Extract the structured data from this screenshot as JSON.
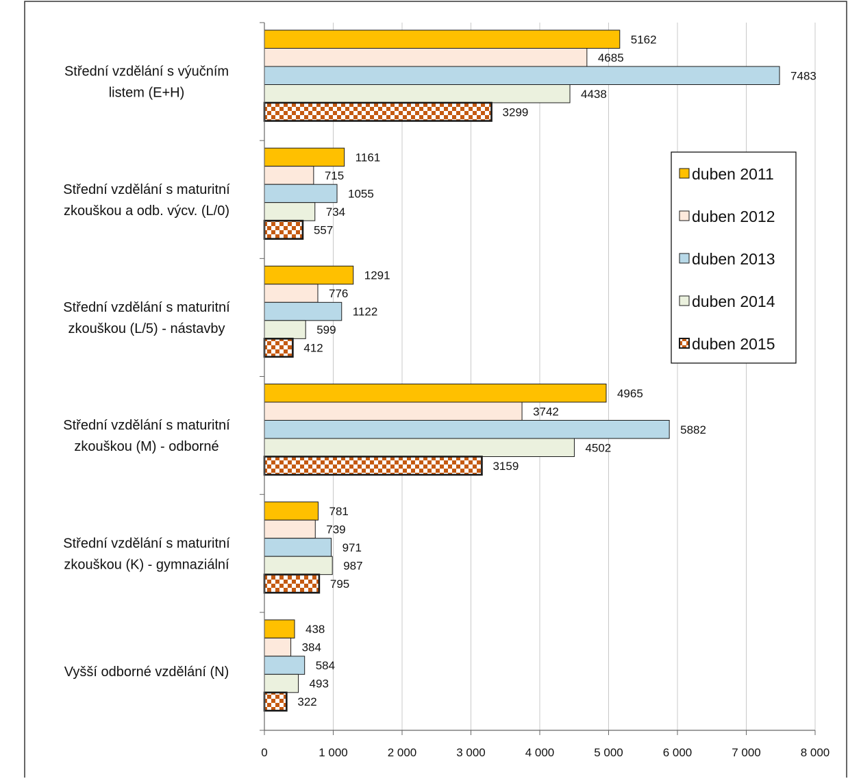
{
  "chart_data": {
    "type": "bar",
    "orientation": "horizontal",
    "title": "",
    "xlabel": "",
    "ylabel": "",
    "xlim": [
      0,
      8000
    ],
    "x_ticks": [
      0,
      1000,
      2000,
      3000,
      4000,
      5000,
      6000,
      7000,
      8000
    ],
    "x_tick_labels": [
      "0",
      "1 000",
      "2 000",
      "3 000",
      "4 000",
      "5 000",
      "6 000",
      "7 000",
      "8 000"
    ],
    "grid": "vertical",
    "legend_position": "right",
    "categories": [
      [
        "Střední vzdělání s výučním",
        "listem (E+H)"
      ],
      [
        "Střední vzdělání s maturitní",
        "zkouškou a odb. výcv. (L/0)"
      ],
      [
        "Střední vzdělání s maturitní",
        "zkouškou (L/5) - nástavby"
      ],
      [
        "Střední vzdělání s maturitní",
        "zkouškou (M) - odborné"
      ],
      [
        "Střední vzdělání s maturitní",
        "zkouškou (K) - gymnaziální"
      ],
      [
        "Vyšší odborné vzdělání (N)"
      ]
    ],
    "series": [
      {
        "name": "duben 2011",
        "color": "#FFC000",
        "pattern": "solid",
        "values": [
          5162,
          1161,
          1291,
          4965,
          781,
          438
        ]
      },
      {
        "name": "duben 2012",
        "color": "#FDE9DC",
        "pattern": "solid",
        "values": [
          4685,
          715,
          776,
          3742,
          739,
          384
        ]
      },
      {
        "name": "duben 2013",
        "color": "#B8D9E8",
        "pattern": "solid",
        "values": [
          7483,
          1055,
          1122,
          5882,
          971,
          584
        ]
      },
      {
        "name": "duben 2014",
        "color": "#EBF1DE",
        "pattern": "solid",
        "values": [
          4438,
          734,
          599,
          4502,
          987,
          493
        ]
      },
      {
        "name": "duben 2015",
        "color": "#C55A11",
        "pattern": "checker",
        "values": [
          3299,
          557,
          412,
          3159,
          795,
          322
        ]
      }
    ]
  }
}
